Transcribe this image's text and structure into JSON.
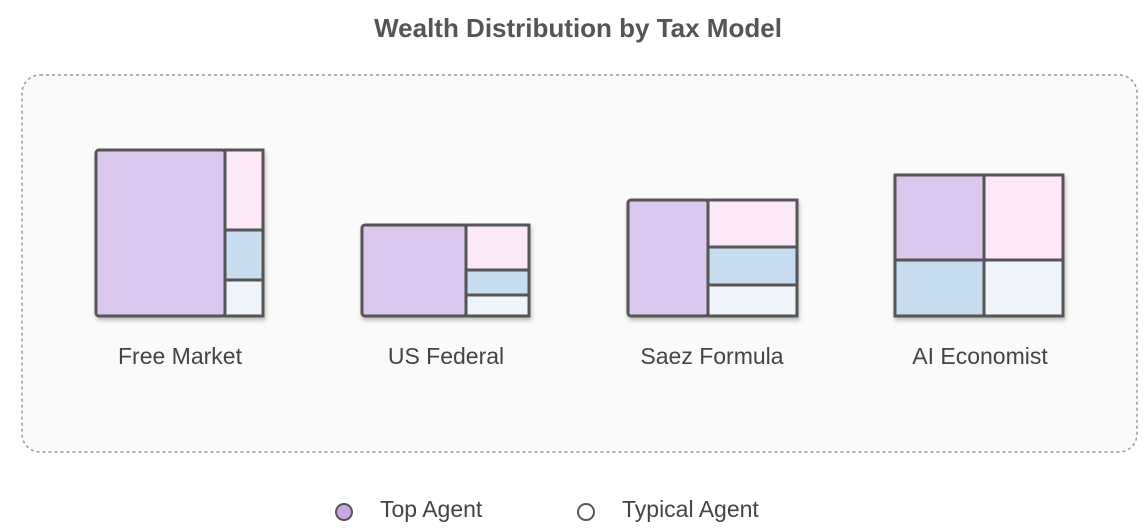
{
  "title": "Wealth Distribution by Tax Model",
  "models": [
    {
      "label": "Free Market"
    },
    {
      "label": "US Federal"
    },
    {
      "label": "Saez Formula"
    },
    {
      "label": "AI Economist"
    }
  ],
  "legend": [
    {
      "label": "Top Agent"
    },
    {
      "label": "Typical Agent"
    }
  ]
}
